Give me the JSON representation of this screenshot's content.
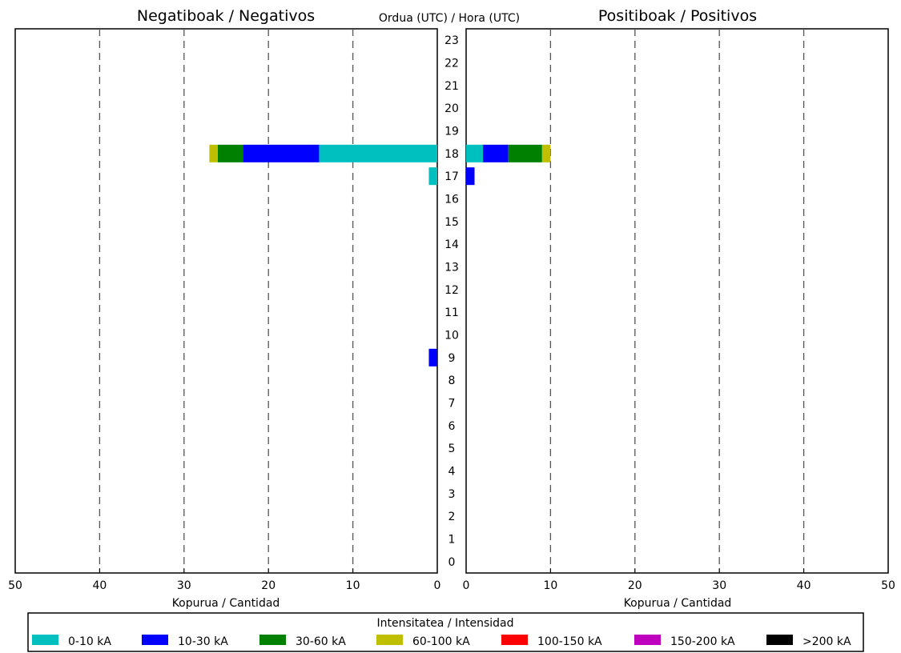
{
  "chart_data": {
    "type": "bar",
    "orientation": "horizontal-butterfly",
    "center_axis_label": "Ordua (UTC) / Hora (UTC)",
    "hours": [
      0,
      1,
      2,
      3,
      4,
      5,
      6,
      7,
      8,
      9,
      10,
      11,
      12,
      13,
      14,
      15,
      16,
      17,
      18,
      19,
      20,
      21,
      22,
      23
    ],
    "x_ticks": [
      0,
      10,
      20,
      30,
      40,
      50
    ],
    "xlim": [
      0,
      50
    ],
    "grid": "vertical-dashed",
    "stacked": true,
    "panels": [
      {
        "side": "left",
        "title": "Negatiboak / Negativos",
        "xlabel": "Kopurua / Cantidad",
        "series_values": {
          "0-10 kA": {
            "17": 1,
            "18": 14
          },
          "10-30 kA": {
            "9": 1,
            "18": 9
          },
          "30-60 kA": {
            "18": 3
          },
          "60-100 kA": {
            "18": 1
          },
          "100-150 kA": {},
          "150-200 kA": {},
          ">200 kA": {}
        }
      },
      {
        "side": "right",
        "title": "Positiboak / Positivos",
        "xlabel": "Kopurua / Cantidad",
        "series_values": {
          "0-10 kA": {
            "18": 2
          },
          "10-30 kA": {
            "17": 1,
            "18": 3
          },
          "30-60 kA": {
            "18": 4
          },
          "60-100 kA": {
            "18": 1
          },
          "100-150 kA": {},
          "150-200 kA": {},
          ">200 kA": {}
        }
      }
    ],
    "legend": {
      "title": "Intensitatea / Intensidad",
      "placement": "bottom",
      "items": [
        {
          "label": "0-10 kA",
          "color": "#00bfbf"
        },
        {
          "label": "10-30 kA",
          "color": "#0000ff"
        },
        {
          "label": "30-60 kA",
          "color": "#008000"
        },
        {
          "label": "60-100 kA",
          "color": "#bfbf00"
        },
        {
          "label": "100-150 kA",
          "color": "#ff0000"
        },
        {
          "label": "150-200 kA",
          "color": "#bf00bf"
        },
        {
          "label": ">200 kA",
          "color": "#000000"
        }
      ]
    }
  }
}
